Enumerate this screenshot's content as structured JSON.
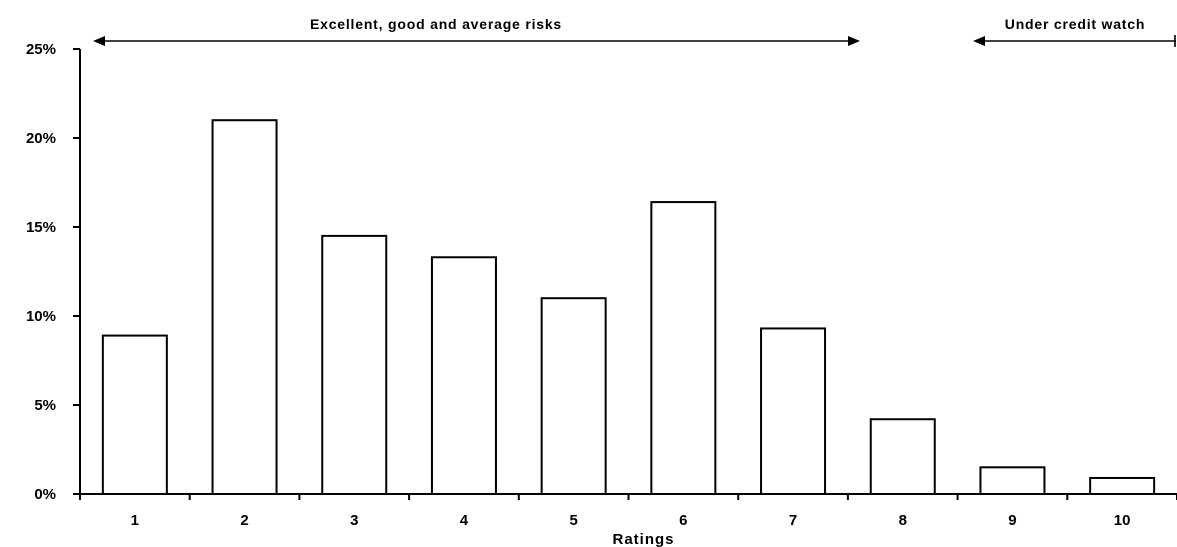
{
  "chart_data": {
    "type": "bar",
    "categories": [
      "1",
      "2",
      "3",
      "4",
      "5",
      "6",
      "7",
      "8",
      "9",
      "10"
    ],
    "values": [
      8.9,
      21.0,
      14.5,
      13.3,
      11.0,
      16.4,
      9.3,
      4.2,
      1.5,
      0.9
    ],
    "xlabel": "Ratings",
    "ylabel": "",
    "ylim": [
      0,
      25
    ],
    "yticks": [
      "0%",
      "5%",
      "10%",
      "15%",
      "20%",
      "25%"
    ],
    "grid": false,
    "bar_fill": "#ffffff",
    "bar_stroke": "#000000",
    "annotations": [
      {
        "text": "Excellent, good and average risks",
        "from_category": "1",
        "to_category": "7",
        "arrows": "both"
      },
      {
        "text": "Under credit watch",
        "from_category": "9",
        "to_category": "10",
        "arrows": "left"
      }
    ]
  }
}
